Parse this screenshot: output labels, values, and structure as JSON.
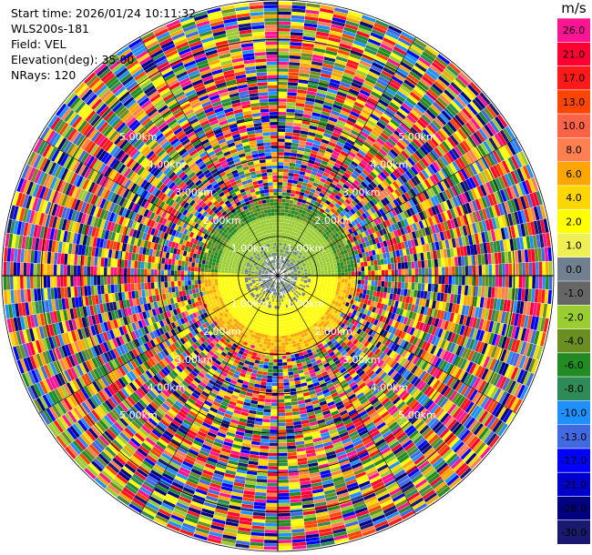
{
  "header": {
    "start_time": "Start time: 2026/01/24 10:11:32",
    "instrument": "WLS200s-181",
    "field": "Field: VEL",
    "elevation": "Elevation(deg): 35.00",
    "nrays": "NRays: 120"
  },
  "chart_data": {
    "type": "heatmap",
    "projection": "polar-ppi",
    "field": "VEL",
    "units": "m/s",
    "elevation_deg": 35.0,
    "n_rays": 120,
    "range_max_km": 7.0,
    "range_rings_km": [
      1,
      2,
      3,
      4,
      5,
      6,
      7
    ],
    "ring_labels": [
      "1.00km",
      "2.00km",
      "3.00km",
      "4.00km",
      "5.00km"
    ],
    "grid": true,
    "colorbar": {
      "placement": "right",
      "label": "m/s",
      "ticks": [
        "26.0",
        "21.0",
        "17.0",
        "13.0",
        "10.0",
        "8.0",
        "6.0",
        "4.0",
        "2.0",
        "1.0",
        "0.0",
        "-1.0",
        "-2.0",
        "-4.0",
        "-6.0",
        "-8.0",
        "-10.0",
        "-13.0",
        "-17.0",
        "-21.0",
        "-26.0",
        "-30.0"
      ],
      "colors": [
        "#ff1493",
        "#ff0033",
        "#ff1a1a",
        "#ff4500",
        "#ff6347",
        "#ff7f50",
        "#ffa500",
        "#ffd700",
        "#ffff00",
        "#eeee55",
        "#708090",
        "#666666",
        "#9acd32",
        "#6b8e23",
        "#228b22",
        "#2e8b57",
        "#1e90ff",
        "#4169e1",
        "#0000ff",
        "#0000cd",
        "#000080",
        "#191970"
      ]
    }
  }
}
